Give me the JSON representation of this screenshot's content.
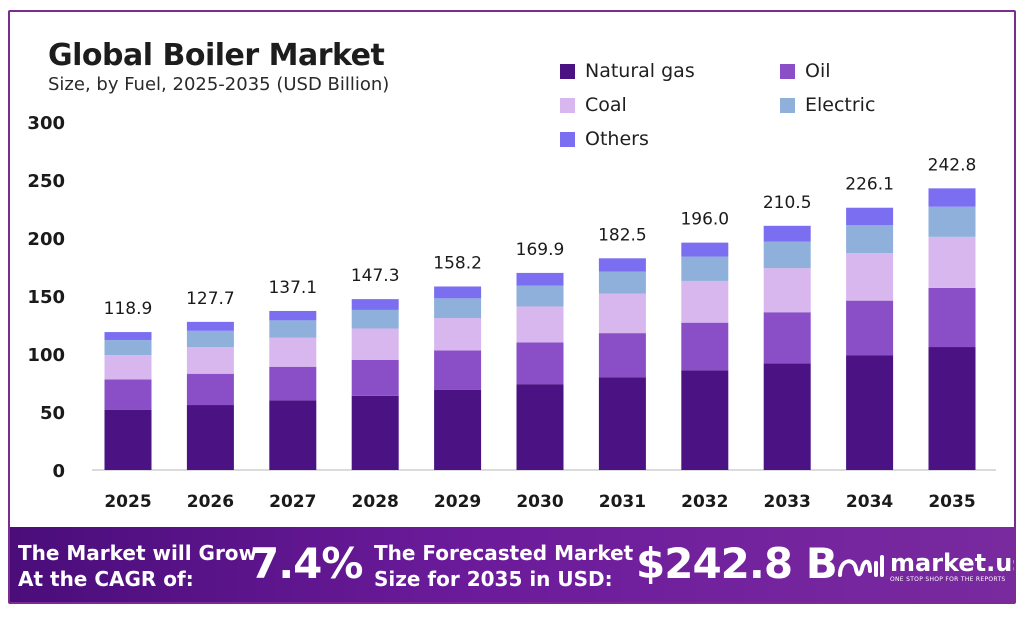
{
  "header": {
    "title": "Global Boiler Market",
    "subtitle": "Size, by Fuel, 2025-2035 (USD Billion)"
  },
  "legend": {
    "items": [
      {
        "label": "Natural gas",
        "color": "#4a1282"
      },
      {
        "label": "Oil",
        "color": "#8a4fc6"
      },
      {
        "label": "Coal",
        "color": "#d8b6ee"
      },
      {
        "label": "Electric",
        "color": "#8fb0da"
      },
      {
        "label": "Others",
        "color": "#7b6ef0"
      }
    ]
  },
  "chart_data": {
    "type": "bar",
    "stacked": true,
    "categories": [
      "2025",
      "2026",
      "2027",
      "2028",
      "2029",
      "2030",
      "2031",
      "2032",
      "2033",
      "2034",
      "2035"
    ],
    "totals": [
      "118.9",
      "127.7",
      "137.1",
      "147.3",
      "158.2",
      "169.9",
      "182.5",
      "196.0",
      "210.5",
      "226.1",
      "242.8"
    ],
    "series": [
      {
        "name": "Natural gas",
        "color": "#4a1282",
        "values": [
          52,
          56,
          60,
          64,
          69,
          74,
          80,
          86,
          92,
          99,
          106
        ]
      },
      {
        "name": "Oil",
        "color": "#8a4fc6",
        "values": [
          26,
          27,
          29,
          31,
          34,
          36,
          38,
          41,
          44,
          47,
          51
        ]
      },
      {
        "name": "Coal",
        "color": "#d8b6ee",
        "values": [
          21,
          23,
          25,
          27,
          28,
          31,
          34,
          36,
          38,
          41,
          44
        ]
      },
      {
        "name": "Electric",
        "color": "#8fb0da",
        "values": [
          13,
          14,
          15,
          16,
          17,
          18,
          19,
          21,
          23,
          24,
          26
        ]
      },
      {
        "name": "Others",
        "color": "#7b6ef0",
        "values": [
          6.9,
          7.7,
          8.1,
          9.3,
          10.2,
          10.9,
          11.5,
          12.0,
          13.5,
          15.1,
          15.8
        ]
      }
    ],
    "yticks": [
      "0",
      "50",
      "100",
      "150",
      "200",
      "250",
      "300"
    ],
    "ylim": [
      0,
      300
    ],
    "xlabel": "",
    "ylabel": "",
    "grid": false,
    "legend_position": "top-right"
  },
  "banner": {
    "cagr_label_line1": "The Market will Grow",
    "cagr_label_line2": "At the CAGR of:",
    "cagr_value": "7.4%",
    "forecast_label_line1": "The Forecasted Market",
    "forecast_label_line2": "Size for 2035 in USD:",
    "forecast_value": "$242.8 B",
    "brand_name": "market.us",
    "brand_tagline": "ONE STOP SHOP FOR THE REPORTS"
  }
}
